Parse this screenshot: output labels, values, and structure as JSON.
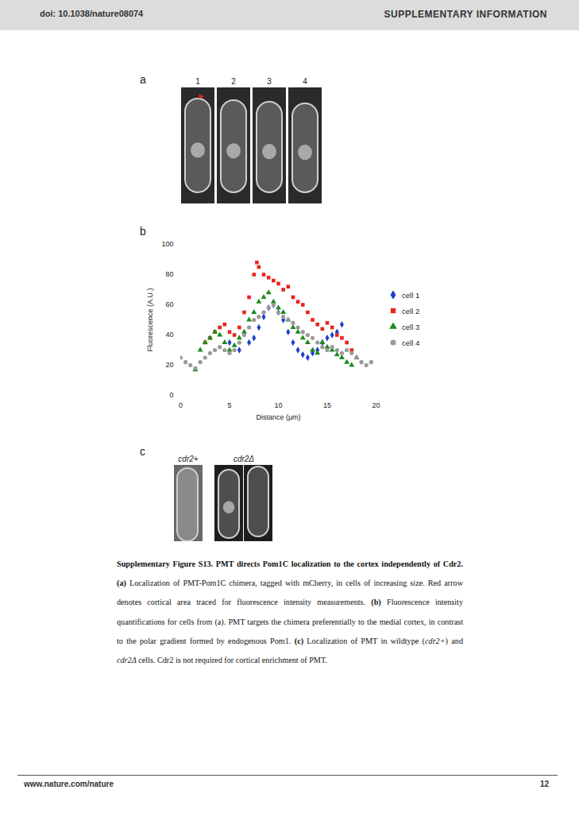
{
  "header": {
    "doi": "doi: 10.1038/nature08074",
    "section": "SUPPLEMENTARY INFORMATION"
  },
  "panel_a": {
    "letter": "a",
    "image_labels": [
      "1",
      "2",
      "3",
      "4"
    ]
  },
  "panel_b": {
    "letter": "b"
  },
  "chart_data": {
    "type": "scatter",
    "xlabel": "Distance (µm)",
    "ylabel": "Fluorescence (A.U.)",
    "xlim": [
      0,
      20
    ],
    "xticks": [
      0,
      5,
      10,
      15,
      20
    ],
    "ylim": [
      0,
      100
    ],
    "yticks": [
      0,
      20,
      40,
      60,
      80,
      100
    ],
    "grid": false,
    "legend": "right",
    "series": [
      {
        "name": "cell 1",
        "color": "#1f3fd1",
        "marker": "diamond",
        "x": [
          5,
          6,
          7,
          7.5,
          8,
          8.5,
          9,
          9.5,
          10,
          10.5,
          11,
          11.5,
          12,
          12.5,
          13,
          13.5,
          14,
          14.5,
          15,
          15.5,
          16,
          16.5
        ],
        "values": [
          35,
          30,
          35,
          38,
          45,
          52,
          58,
          60,
          55,
          50,
          42,
          35,
          30,
          27,
          25,
          28,
          30,
          35,
          38,
          40,
          42,
          47
        ]
      },
      {
        "name": "cell 2",
        "color": "#e8261c",
        "marker": "square",
        "x": [
          2.5,
          3,
          3.5,
          4,
          4.5,
          5,
          5.5,
          6,
          6.5,
          7,
          7.5,
          7.8,
          8,
          8.5,
          9,
          9.5,
          10,
          10.5,
          11,
          11.5,
          12,
          12.5,
          13,
          13.5,
          14,
          14.5,
          15,
          15.5,
          16,
          16.5,
          17,
          17.5
        ],
        "values": [
          35,
          38,
          42,
          45,
          47,
          42,
          40,
          45,
          55,
          65,
          80,
          88,
          85,
          80,
          78,
          76,
          74,
          70,
          72,
          65,
          62,
          60,
          55,
          50,
          47,
          44,
          48,
          45,
          40,
          38,
          35,
          30
        ]
      },
      {
        "name": "cell 3",
        "color": "#1d8a1d",
        "marker": "triangle",
        "x": [
          1.5,
          2,
          2.5,
          3,
          3.5,
          4,
          4.5,
          5,
          5.5,
          6,
          6.5,
          7,
          7.5,
          8,
          8.5,
          9,
          9.5,
          10,
          10.5,
          11,
          11.5,
          12,
          12.5,
          13,
          13.5,
          14,
          14.5,
          15,
          15.5,
          16,
          16.5,
          17,
          17.5,
          18
        ],
        "values": [
          17,
          30,
          35,
          38,
          42,
          40,
          35,
          30,
          33,
          38,
          42,
          50,
          55,
          62,
          65,
          68,
          62,
          58,
          55,
          50,
          45,
          42,
          38,
          35,
          30,
          28,
          35,
          32,
          30,
          27,
          25,
          22,
          20,
          25
        ]
      },
      {
        "name": "cell 4",
        "color": "#9a9a9a",
        "marker": "circle",
        "x": [
          0,
          0.5,
          1,
          1.5,
          2,
          2.5,
          3,
          3.5,
          4,
          4.5,
          5,
          5.5,
          6,
          6.5,
          7,
          7.5,
          8,
          8.5,
          9,
          9.5,
          10,
          10.5,
          11,
          11.5,
          12,
          12.5,
          13,
          13.5,
          14,
          14.5,
          15,
          15.5,
          16,
          16.5,
          17,
          17.5,
          18,
          18.5,
          19,
          19.5
        ],
        "values": [
          25,
          22,
          20,
          18,
          22,
          25,
          28,
          30,
          32,
          30,
          28,
          30,
          35,
          40,
          45,
          50,
          52,
          55,
          58,
          60,
          55,
          52,
          50,
          48,
          45,
          42,
          40,
          38,
          35,
          32,
          30,
          32,
          30,
          28,
          30,
          28,
          25,
          22,
          20,
          22
        ]
      }
    ]
  },
  "panel_c": {
    "letter": "c",
    "image_labels": [
      "cdr2+",
      "cdr2Δ"
    ]
  },
  "caption": [
    {
      "text": "Supplementary Figure S13. PMT directs Pom1C localization to the cortex independently of Cdr2.",
      "bold": true
    },
    {
      "text": " "
    },
    {
      "text": "(a)",
      "bold": true
    },
    {
      "text": " Localization of PMT-Pom1C chimera, tagged with mCherry, in cells of increasing size. Red arrow denotes cortical area traced for fluorescence intensity measurements. "
    },
    {
      "text": "(b)",
      "bold": true
    },
    {
      "text": " Fluorescence intensity quantifications for cells from (a). PMT targets the chimera preferentially to the medial cortex, in contrast to the polar gradient formed by endogenous Pom1. "
    },
    {
      "text": "(c)",
      "bold": true
    },
    {
      "text": " Localization of PMT in wildtype ("
    },
    {
      "text": "cdr2+",
      "italic": true
    },
    {
      "text": ") and "
    },
    {
      "text": "cdr2Δ",
      "italic": true
    },
    {
      "text": " cells. Cdr2 is not required for cortical enrichment of PMT."
    }
  ],
  "footer": {
    "url": "www.nature.com/nature",
    "page": "12"
  }
}
